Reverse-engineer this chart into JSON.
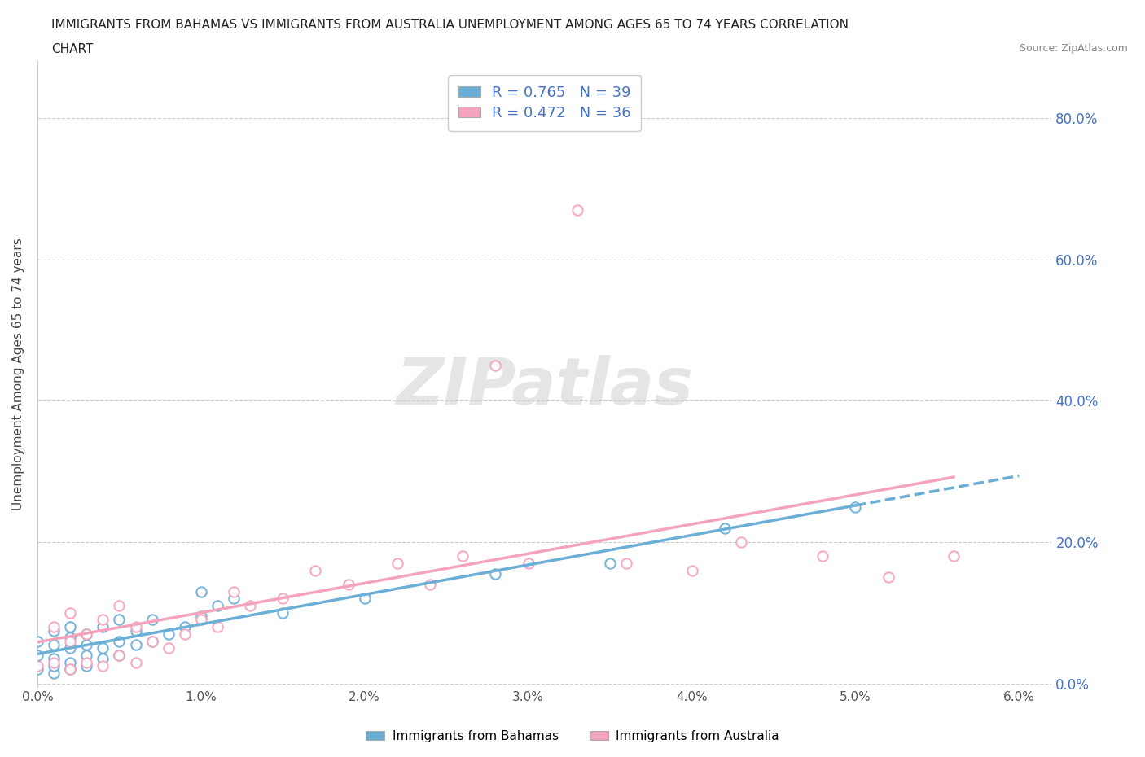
{
  "title_line1": "IMMIGRANTS FROM BAHAMAS VS IMMIGRANTS FROM AUSTRALIA UNEMPLOYMENT AMONG AGES 65 TO 74 YEARS CORRELATION",
  "title_line2": "CHART",
  "source": "Source: ZipAtlas.com",
  "ylabel": "Unemployment Among Ages 65 to 74 years",
  "xlim": [
    0.0,
    0.062
  ],
  "ylim": [
    -0.005,
    0.88
  ],
  "xtick_vals": [
    0.0,
    0.01,
    0.02,
    0.03,
    0.04,
    0.05,
    0.06
  ],
  "ytick_vals": [
    0.0,
    0.2,
    0.4,
    0.6,
    0.8
  ],
  "bahamas_color": "#6baed6",
  "australia_color": "#f4a3bc",
  "bahamas_R": 0.765,
  "bahamas_N": 39,
  "australia_R": 0.472,
  "australia_N": 36,
  "legend_label_bahamas": "Immigrants from Bahamas",
  "legend_label_australia": "Immigrants from Australia",
  "watermark": "ZIPatlas",
  "background_color": "#ffffff",
  "grid_color": "#cccccc",
  "axis_label_color": "#4472c4",
  "title_color": "#222222",
  "ylabel_color": "#444444",
  "legend_text_color": "#4472c4",
  "source_color": "#888888"
}
